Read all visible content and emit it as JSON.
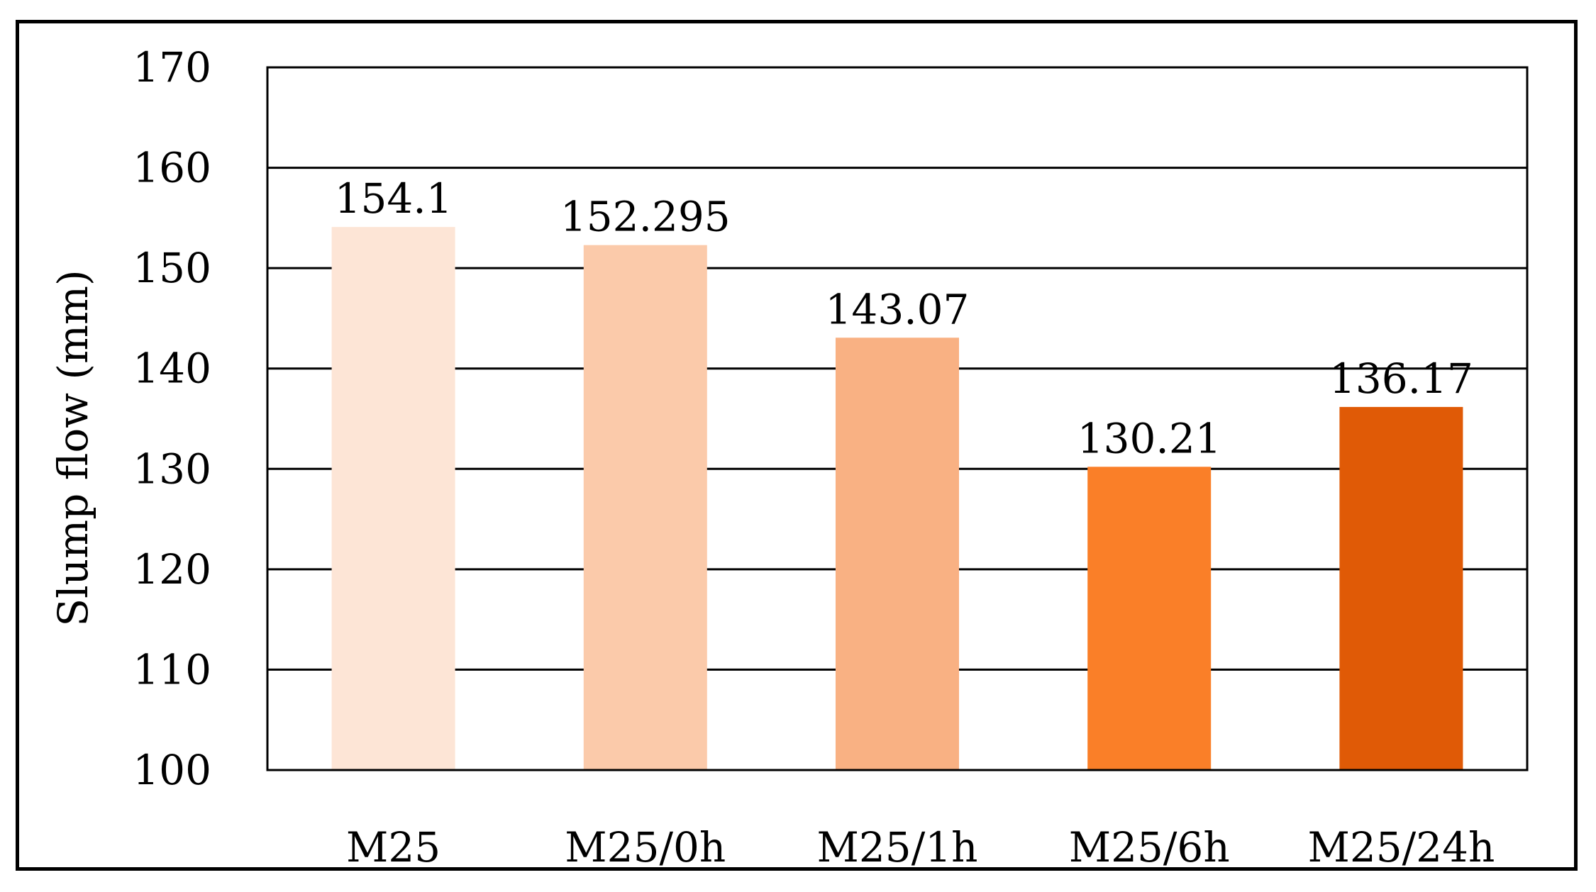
{
  "chart_data": {
    "type": "bar",
    "title": "",
    "xlabel": "",
    "ylabel": "Slump flow (mm)",
    "ylim": [
      100,
      170
    ],
    "yticks": [
      100,
      110,
      120,
      130,
      140,
      150,
      160,
      170
    ],
    "grid": true,
    "legend": "none",
    "categories": [
      "M25",
      "M25/0h",
      "M25/1h",
      "M25/6h",
      "M25/24h"
    ],
    "values": [
      154.1,
      152.295,
      143.07,
      130.21,
      136.17
    ],
    "data_labels": [
      "154.1",
      "152.295",
      "143.07",
      "130.21",
      "136.17"
    ],
    "colors": [
      "#fde5d6",
      "#fbcaaa",
      "#f9b183",
      "#fa7f28",
      "#e05a06"
    ]
  }
}
